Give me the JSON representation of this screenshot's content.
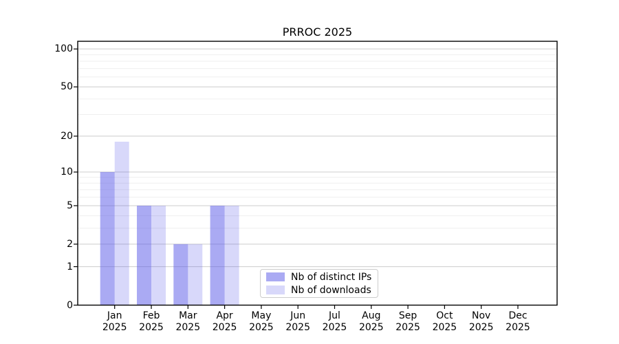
{
  "chart_data": {
    "type": "bar",
    "title": "PRROC 2025",
    "categories": [
      "Jan",
      "Feb",
      "Mar",
      "Apr",
      "May",
      "Jun",
      "Jul",
      "Aug",
      "Sep",
      "Oct",
      "Nov",
      "Dec"
    ],
    "category_sublabel": "2025",
    "series": [
      {
        "name": "Nb of distinct IPs",
        "color": "rgba(85,85,232,0.50)",
        "values": [
          10,
          5,
          2,
          5,
          0,
          0,
          0,
          0,
          0,
          0,
          0,
          0
        ]
      },
      {
        "name": "Nb of downloads",
        "color": "rgba(85,85,232,0.23)",
        "values": [
          18,
          5,
          2,
          5,
          0,
          0,
          0,
          0,
          0,
          0,
          0,
          0
        ]
      }
    ],
    "yscale": "log1p",
    "yticks": [
      0,
      1,
      2,
      5,
      10,
      20,
      50,
      100
    ],
    "minor_yticks": [
      3,
      4,
      6,
      7,
      8,
      9,
      30,
      40,
      60,
      70,
      80,
      90
    ],
    "ylim": [
      0,
      115
    ],
    "xlabel": "",
    "ylabel": "",
    "grid": "on",
    "legend_position": "lower center",
    "colors": {
      "grid_major": "#cccccc",
      "grid_minor": "#efefef",
      "spine": "#000000",
      "tick": "#000000",
      "text": "#000000",
      "legend_border": "#cccccc",
      "background": "#ffffff"
    }
  }
}
